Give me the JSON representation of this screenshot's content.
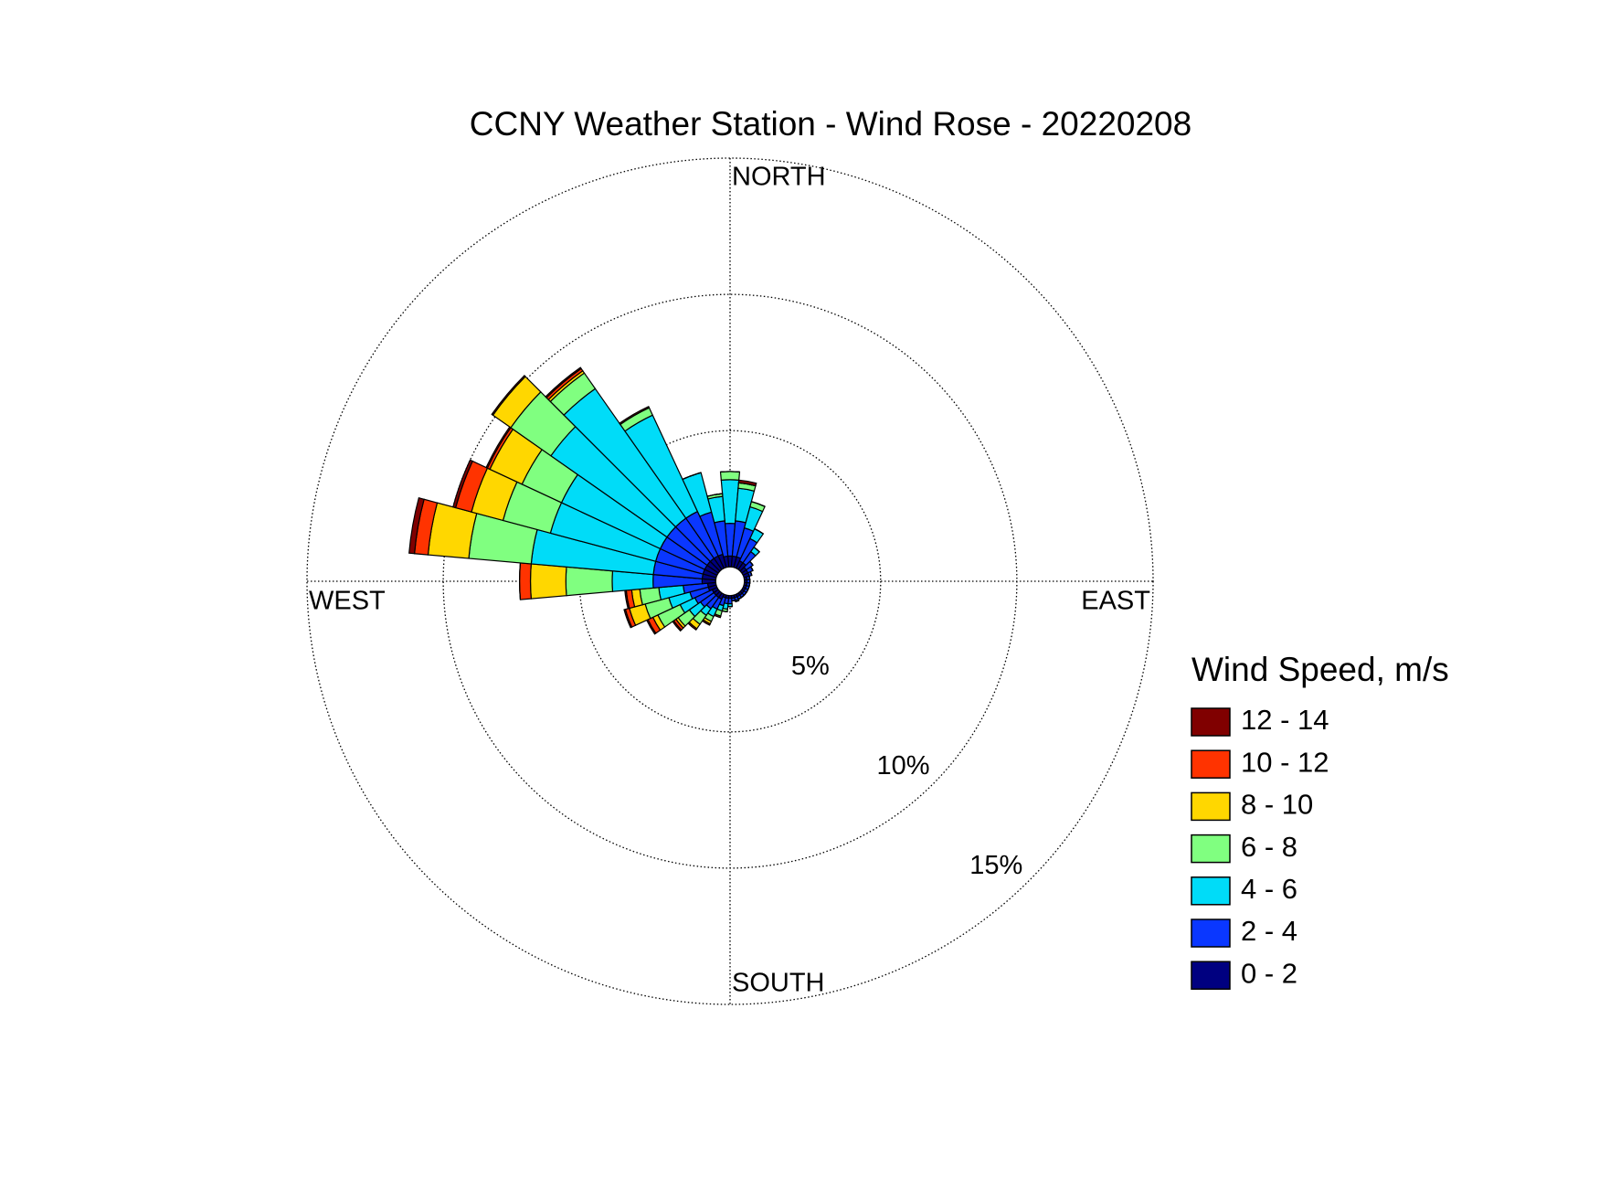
{
  "chart_data": {
    "type": "windrose",
    "title": "CCNY Weather Station - Wind Rose - 20220208",
    "compass_labels": [
      "NORTH",
      "EAST",
      "SOUTH",
      "WEST"
    ],
    "legend_title": "Wind Speed, m/s",
    "legend": "right",
    "grid": true,
    "rlim": [
      0,
      15
    ],
    "rticks": [
      {
        "value": 5,
        "label": "5%"
      },
      {
        "value": 10,
        "label": "10%"
      },
      {
        "value": 15,
        "label": "15%"
      }
    ],
    "directions": [
      0,
      10,
      20,
      30,
      40,
      50,
      60,
      70,
      80,
      90,
      100,
      110,
      120,
      130,
      140,
      150,
      160,
      170,
      180,
      190,
      200,
      210,
      220,
      230,
      240,
      250,
      260,
      270,
      280,
      290,
      300,
      310,
      320,
      330,
      340,
      350
    ],
    "series": [
      {
        "name": "0 - 2",
        "color": "#000080",
        "values": [
          0.4,
          0.4,
          0.4,
          0.3,
          0.3,
          0.2,
          0.2,
          0.2,
          0.1,
          0.1,
          0.1,
          0.1,
          0.1,
          0.1,
          0.1,
          0.1,
          0.1,
          0.1,
          0.1,
          0.1,
          0.1,
          0.2,
          0.2,
          0.2,
          0.2,
          0.3,
          0.3,
          0.5,
          0.5,
          0.5,
          0.5,
          0.5,
          0.5,
          0.5,
          0.5,
          0.4
        ]
      },
      {
        "name": "2 - 4",
        "color": "#0a37ff",
        "values": [
          1.2,
          1.3,
          1.1,
          0.9,
          0.5,
          0.3,
          0.2,
          0.1,
          0.1,
          0.1,
          0.1,
          0.1,
          0.1,
          0.1,
          0.1,
          0.1,
          0.1,
          0.1,
          0.2,
          0.2,
          0.3,
          0.4,
          0.5,
          0.6,
          0.7,
          0.7,
          0.9,
          1.8,
          1.8,
          1.8,
          1.8,
          1.8,
          1.8,
          1.8,
          1.6,
          1.3
        ]
      },
      {
        "name": "4 - 6",
        "color": "#00dcf8",
        "values": [
          1.6,
          1.2,
          0.8,
          0.4,
          0.2,
          0,
          0,
          0,
          0,
          0,
          0,
          0,
          0,
          0,
          0,
          0,
          0.05,
          0,
          0.1,
          0.2,
          0.2,
          0.3,
          0.3,
          0.5,
          0.6,
          0.8,
          0.9,
          1.5,
          4.5,
          4.0,
          4.0,
          5.2,
          5.8,
          3.9,
          1.5,
          0.9
        ]
      },
      {
        "name": "6 - 8",
        "color": "#80ff80",
        "values": [
          0.3,
          0.2,
          0.2,
          0,
          0,
          0,
          0,
          0,
          0,
          0,
          0,
          0,
          0,
          0,
          0,
          0,
          0,
          0,
          0,
          0.1,
          0.2,
          0.2,
          0.4,
          0.5,
          0.9,
          0.9,
          0.7,
          1.7,
          2.3,
          1.8,
          1.6,
          1.8,
          0.7,
          0.3,
          0,
          0.1
        ]
      },
      {
        "name": "8 - 10",
        "color": "#ffd700",
        "values": [
          0,
          0,
          0,
          0,
          0,
          0,
          0,
          0,
          0,
          0,
          0,
          0,
          0,
          0,
          0,
          0,
          0,
          0,
          0,
          0,
          0,
          0.1,
          0.2,
          0.1,
          0.2,
          0.6,
          0.3,
          1.3,
          1.5,
          1.2,
          1.3,
          0.8,
          0.1,
          0,
          0,
          0
        ]
      },
      {
        "name": "10 - 12",
        "color": "#ff3300",
        "values": [
          0,
          0,
          0,
          0,
          0,
          0,
          0,
          0,
          0,
          0,
          0,
          0,
          0,
          0,
          0,
          0,
          0,
          0,
          0,
          0,
          0.05,
          0.05,
          0.05,
          0.1,
          0.2,
          0.15,
          0.2,
          0.4,
          0.5,
          0.6,
          0.1,
          0,
          0.1,
          0,
          0,
          0
        ]
      },
      {
        "name": "12 - 14",
        "color": "#800000",
        "values": [
          0,
          0.1,
          0,
          0,
          0,
          0,
          0,
          0,
          0,
          0,
          0,
          0,
          0,
          0,
          0,
          0,
          0,
          0,
          0,
          0,
          0,
          0,
          0,
          0.05,
          0.05,
          0.05,
          0.05,
          0,
          0.2,
          0.1,
          0.05,
          0.05,
          0.05,
          0.05,
          0,
          0
        ]
      }
    ]
  }
}
